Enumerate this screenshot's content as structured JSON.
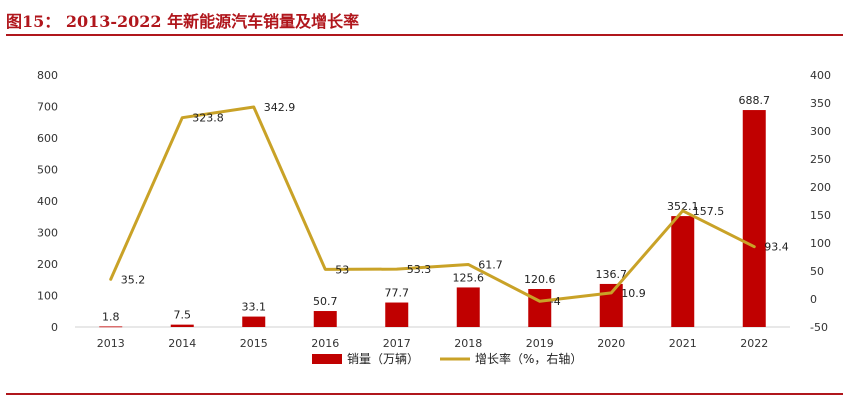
{
  "header": {
    "title": "图15： 2013-2022 年新能源汽车销量及增长率"
  },
  "colors": {
    "accent": "#b0161c",
    "bar": "#c00000",
    "line": "#c9a227"
  },
  "chart_data": {
    "type": "bar",
    "categories": [
      "2013",
      "2014",
      "2015",
      "2016",
      "2017",
      "2018",
      "2019",
      "2020",
      "2021",
      "2022"
    ],
    "series": [
      {
        "name": "销量（万辆）",
        "type": "bar",
        "axis": "left",
        "values": [
          1.8,
          7.5,
          33.1,
          50.7,
          77.7,
          125.6,
          120.6,
          136.7,
          352.1,
          688.7
        ],
        "labels": [
          "1.8",
          "7.5",
          "33.1",
          "50.7",
          "77.7",
          "125.6",
          "120.6",
          "136.7",
          "352.1",
          "688.7"
        ]
      },
      {
        "name": "增长率（%，右轴）",
        "type": "line",
        "axis": "right",
        "values": [
          35.2,
          323.8,
          342.9,
          53,
          53.3,
          61.7,
          -4,
          10.9,
          157.5,
          93.4
        ],
        "labels": [
          "35.2",
          "323.8",
          "342.9",
          "53",
          "53.3",
          "61.7",
          "-4",
          "10.9",
          "157.5",
          "93.4"
        ]
      }
    ],
    "y_left": {
      "min": 0,
      "max": 800,
      "ticks": [
        "0",
        "100",
        "200",
        "300",
        "400",
        "500",
        "600",
        "700",
        "800"
      ]
    },
    "y_right": {
      "min": -50,
      "max": 400,
      "ticks": [
        "-50",
        "0",
        "50",
        "100",
        "150",
        "200",
        "250",
        "300",
        "350",
        "400"
      ]
    },
    "grid": false,
    "legend_position": "bottom-center"
  }
}
